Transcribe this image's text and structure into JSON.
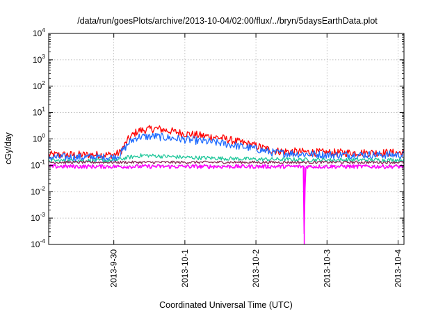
{
  "chart_data": {
    "type": "line",
    "title": "/data/run/goesPlots/archive/2013-10-04/02:00/flux/../bryn/5daysEarthData.plot",
    "xlabel": "Coordinated Universal Time (UTC)",
    "ylabel": "cGy/day",
    "yscale": "log",
    "ylim": [
      0.0001,
      10000
    ],
    "xlim": [
      "2013-09-29 02:00",
      "2013-10-04 02:00"
    ],
    "grid": true,
    "y_ticks": [
      {
        "base": "10",
        "exp": "-4"
      },
      {
        "base": "10",
        "exp": "-3"
      },
      {
        "base": "10",
        "exp": "-2"
      },
      {
        "base": "10",
        "exp": "-1"
      },
      {
        "base": "10",
        "exp": "0"
      },
      {
        "base": "10",
        "exp": "1"
      },
      {
        "base": "10",
        "exp": "2"
      },
      {
        "base": "10",
        "exp": "3"
      },
      {
        "base": "10",
        "exp": "4"
      }
    ],
    "x_ticks": [
      {
        "label": "2013-9-30",
        "x": "2013-09-30 00:00"
      },
      {
        "label": "2013-10-1",
        "x": "2013-10-01 00:00"
      },
      {
        "label": "2013-10-2",
        "x": "2013-10-02 00:00"
      },
      {
        "label": "2013-10-3",
        "x": "2013-10-03 00:00"
      },
      {
        "label": "2013-10-4",
        "x": "2013-10-04 00:00"
      }
    ],
    "series": [
      {
        "color": "#ff0000",
        "noise": 0.3,
        "points": [
          [
            "2013-09-29 02:00",
            0.25
          ],
          [
            "2013-09-30 00:00",
            0.25
          ],
          [
            "2013-09-30 02:00",
            0.3
          ],
          [
            "2013-09-30 05:00",
            1.0
          ],
          [
            "2013-09-30 08:00",
            2.0
          ],
          [
            "2013-09-30 14:00",
            2.5
          ],
          [
            "2013-10-01 00:00",
            1.6
          ],
          [
            "2013-10-01 12:00",
            1.1
          ],
          [
            "2013-10-02 00:00",
            0.55
          ],
          [
            "2013-10-02 06:00",
            0.35
          ],
          [
            "2013-10-03 00:00",
            0.3
          ],
          [
            "2013-10-04 02:00",
            0.3
          ]
        ]
      },
      {
        "color": "#1e6bff",
        "noise": 0.3,
        "points": [
          [
            "2013-09-29 02:00",
            0.2
          ],
          [
            "2013-09-30 00:00",
            0.2
          ],
          [
            "2013-09-30 02:00",
            0.25
          ],
          [
            "2013-09-30 05:00",
            0.7
          ],
          [
            "2013-09-30 08:00",
            1.2
          ],
          [
            "2013-09-30 14:00",
            1.25
          ],
          [
            "2013-10-01 00:00",
            0.95
          ],
          [
            "2013-10-01 12:00",
            0.7
          ],
          [
            "2013-10-02 00:00",
            0.42
          ],
          [
            "2013-10-02 06:00",
            0.3
          ],
          [
            "2013-10-03 00:00",
            0.25
          ],
          [
            "2013-10-04 02:00",
            0.25
          ]
        ]
      },
      {
        "color": "#1fc79a",
        "noise": 0.15,
        "points": [
          [
            "2013-09-29 02:00",
            0.15
          ],
          [
            "2013-09-30 00:00",
            0.15
          ],
          [
            "2013-09-30 05:00",
            0.2
          ],
          [
            "2013-09-30 10:00",
            0.24
          ],
          [
            "2013-10-01 00:00",
            0.2
          ],
          [
            "2013-10-02 00:00",
            0.17
          ],
          [
            "2013-10-03 00:00",
            0.16
          ],
          [
            "2013-10-04 02:00",
            0.16
          ]
        ]
      },
      {
        "color": "#8a2a55",
        "noise": 0.1,
        "points": [
          [
            "2013-09-29 02:00",
            0.13
          ],
          [
            "2013-10-04 02:00",
            0.13
          ]
        ]
      },
      {
        "color": "#ff00ff",
        "noise": 0.15,
        "points": [
          [
            "2013-09-29 02:00",
            0.09
          ],
          [
            "2013-10-02 16:00",
            0.09
          ],
          [
            "2013-10-02 16:20",
            0.0001
          ],
          [
            "2013-10-02 16:40",
            0.09
          ],
          [
            "2013-10-04 02:00",
            0.09
          ]
        ]
      }
    ]
  }
}
